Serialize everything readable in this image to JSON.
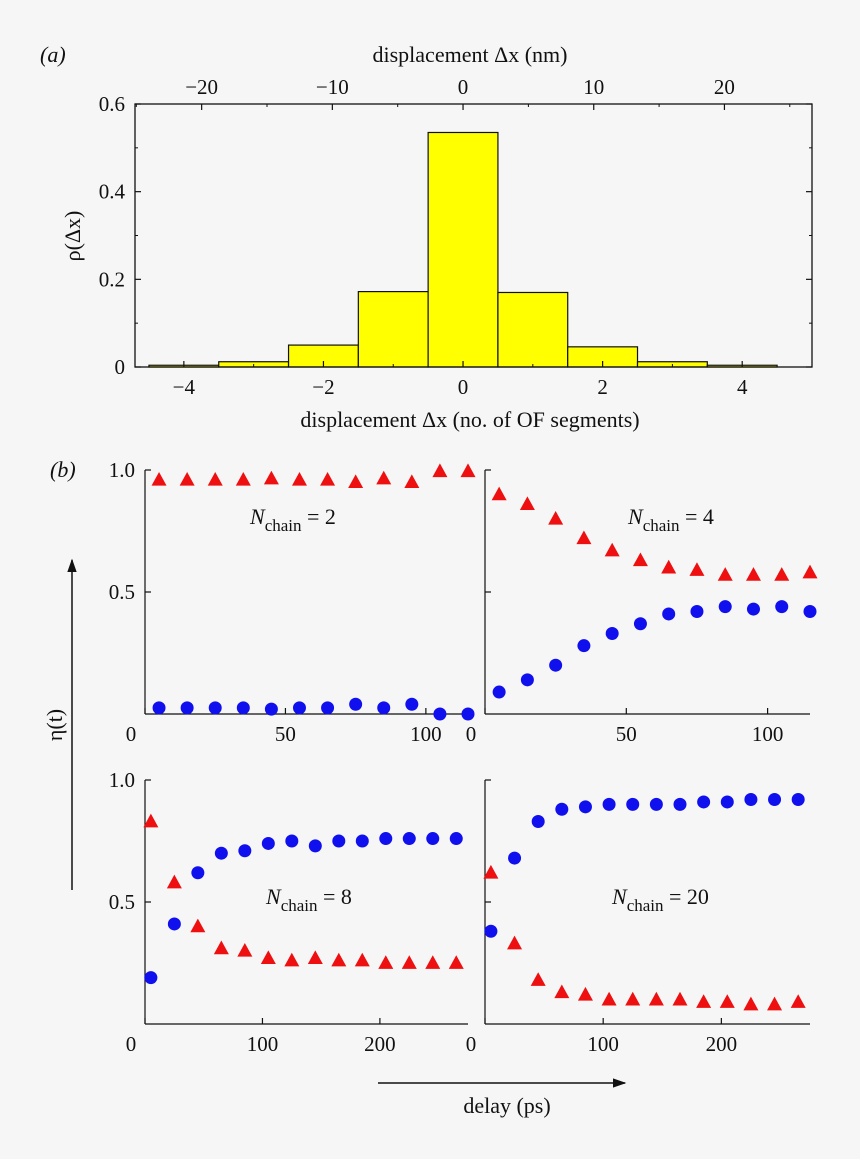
{
  "chart_data": [
    {
      "panel": "(a)",
      "type": "bar",
      "style": "histogram",
      "bar_color": "#ffff00",
      "xlabel": "displacement Δx (no. of OF segments)",
      "x2label": "displacement Δx (nm)",
      "ylabel": "ρ(Δx)",
      "xlim": [
        -4.7,
        5.0
      ],
      "ylim": [
        0,
        0.6
      ],
      "x2lim": [
        -25.1,
        26.7
      ],
      "x_ticks": [
        -4,
        -2,
        0,
        2,
        4
      ],
      "x_tick_labels": [
        "−4",
        "−2",
        "0",
        "2",
        "4"
      ],
      "x2_ticks": [
        -20,
        -10,
        0,
        10,
        20
      ],
      "x2_tick_labels": [
        "−20",
        "−10",
        "0",
        "10",
        "20"
      ],
      "y_ticks": [
        0,
        0.2,
        0.4,
        0.6
      ],
      "y_tick_labels": [
        "0",
        "0.2",
        "0.4",
        "0.6"
      ],
      "categories": [
        -4,
        -3,
        -2,
        -1,
        0,
        1,
        2,
        3,
        4
      ],
      "values": [
        0.004,
        0.012,
        0.05,
        0.172,
        0.535,
        0.17,
        0.046,
        0.012,
        0.004
      ]
    },
    {
      "panel": "(b)",
      "type": "scatter",
      "ylabel": "η(t)",
      "xlabel": "delay (ps)",
      "colors": {
        "circle": "#1010ee",
        "triangle": "#ee1010"
      },
      "subplots": [
        {
          "id": "chain2",
          "annotation": {
            "prefix": "N",
            "sub": "chain",
            "suffix": " = 2"
          },
          "xlim": [
            0,
            115
          ],
          "ylim": [
            0,
            1.0
          ],
          "x_ticks": [
            0,
            50,
            100
          ],
          "x_tick_labels": [
            "0",
            "50",
            "100"
          ],
          "y_ticks": [
            0.5,
            1.0
          ],
          "y_tick_labels": [
            "0.5",
            "1.0"
          ],
          "series": [
            {
              "marker": "triangle",
              "x": [
                5,
                15,
                25,
                35,
                45,
                55,
                65,
                75,
                85,
                95,
                105,
                115
              ],
              "y": [
                0.96,
                0.96,
                0.96,
                0.96,
                0.965,
                0.96,
                0.96,
                0.95,
                0.965,
                0.95,
                0.995,
                0.995
              ]
            },
            {
              "marker": "circle",
              "x": [
                5,
                15,
                25,
                35,
                45,
                55,
                65,
                75,
                85,
                95,
                105,
                115
              ],
              "y": [
                0.025,
                0.025,
                0.025,
                0.025,
                0.02,
                0.025,
                0.025,
                0.04,
                0.025,
                0.04,
                0.0,
                0.0
              ]
            }
          ]
        },
        {
          "id": "chain4",
          "annotation": {
            "prefix": "N",
            "sub": "chain",
            "suffix": " = 4"
          },
          "xlim": [
            0,
            115
          ],
          "ylim": [
            0,
            1.0
          ],
          "x_ticks": [
            0,
            50,
            100
          ],
          "x_tick_labels": [
            "0",
            "50",
            "100"
          ],
          "y_ticks": [
            0.5,
            1.0
          ],
          "y_tick_labels": [
            "0.5",
            "1.0"
          ],
          "series": [
            {
              "marker": "triangle",
              "x": [
                5,
                15,
                25,
                35,
                45,
                55,
                65,
                75,
                85,
                95,
                105,
                115
              ],
              "y": [
                0.9,
                0.86,
                0.8,
                0.72,
                0.67,
                0.63,
                0.6,
                0.59,
                0.57,
                0.57,
                0.57,
                0.58
              ]
            },
            {
              "marker": "circle",
              "x": [
                5,
                15,
                25,
                35,
                45,
                55,
                65,
                75,
                85,
                95,
                105,
                115
              ],
              "y": [
                0.09,
                0.14,
                0.2,
                0.28,
                0.33,
                0.37,
                0.41,
                0.42,
                0.44,
                0.43,
                0.44,
                0.42
              ]
            }
          ]
        },
        {
          "id": "chain8",
          "annotation": {
            "prefix": "N",
            "sub": "chain",
            "suffix": " = 8"
          },
          "xlim": [
            0,
            275
          ],
          "ylim": [
            0,
            1.0
          ],
          "x_ticks": [
            0,
            100,
            200
          ],
          "x_tick_labels": [
            "0",
            "100",
            "200"
          ],
          "y_ticks": [
            0.5,
            1.0
          ],
          "y_tick_labels": [
            "0.5",
            "1.0"
          ],
          "series": [
            {
              "marker": "triangle",
              "x": [
                5,
                25,
                45,
                65,
                85,
                105,
                125,
                145,
                165,
                185,
                205,
                225,
                245,
                265
              ],
              "y": [
                0.83,
                0.58,
                0.4,
                0.31,
                0.3,
                0.27,
                0.26,
                0.27,
                0.26,
                0.26,
                0.25,
                0.25,
                0.25,
                0.25
              ]
            },
            {
              "marker": "circle",
              "x": [
                5,
                25,
                45,
                65,
                85,
                105,
                125,
                145,
                165,
                185,
                205,
                225,
                245,
                265
              ],
              "y": [
                0.19,
                0.41,
                0.62,
                0.7,
                0.71,
                0.74,
                0.75,
                0.73,
                0.75,
                0.75,
                0.76,
                0.76,
                0.76,
                0.76
              ]
            }
          ]
        },
        {
          "id": "chain20",
          "annotation": {
            "prefix": "N",
            "sub": "chain",
            "suffix": " = 20"
          },
          "xlim": [
            0,
            275
          ],
          "ylim": [
            0,
            1.0
          ],
          "x_ticks": [
            0,
            100,
            200
          ],
          "x_tick_labels": [
            "0",
            "100",
            "200"
          ],
          "y_ticks": [
            0.5,
            1.0
          ],
          "y_tick_labels": [
            "0.5",
            "1.0"
          ],
          "series": [
            {
              "marker": "triangle",
              "x": [
                5,
                25,
                45,
                65,
                85,
                105,
                125,
                145,
                165,
                185,
                205,
                225,
                245,
                265
              ],
              "y": [
                0.62,
                0.33,
                0.18,
                0.13,
                0.12,
                0.1,
                0.1,
                0.1,
                0.1,
                0.09,
                0.09,
                0.08,
                0.08,
                0.09
              ]
            },
            {
              "marker": "circle",
              "x": [
                5,
                25,
                45,
                65,
                85,
                105,
                125,
                145,
                165,
                185,
                205,
                225,
                245,
                265
              ],
              "y": [
                0.38,
                0.68,
                0.83,
                0.88,
                0.89,
                0.9,
                0.9,
                0.9,
                0.9,
                0.91,
                0.91,
                0.92,
                0.92,
                0.92
              ]
            }
          ]
        }
      ]
    }
  ]
}
